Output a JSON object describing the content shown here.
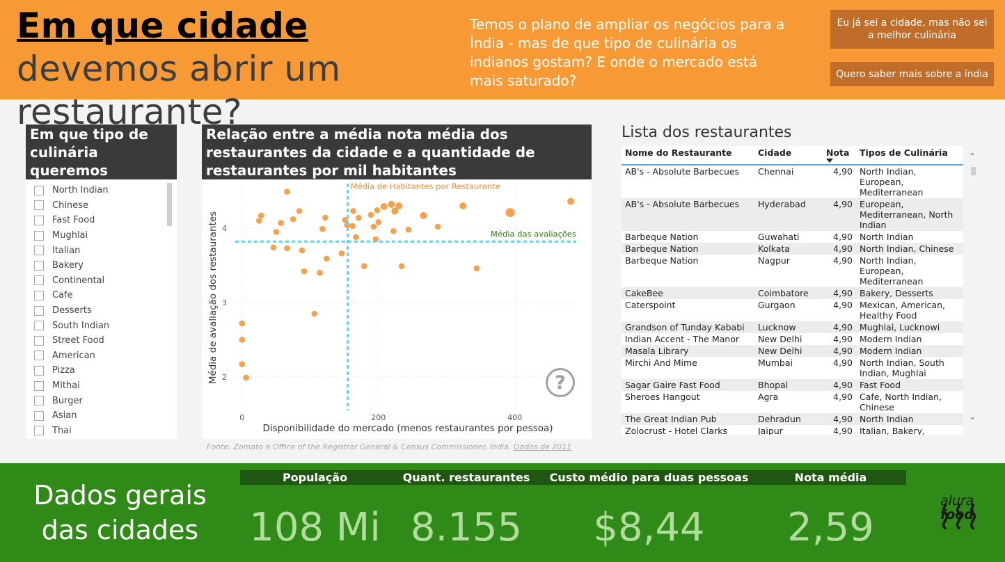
{
  "header": {
    "title_strong": "Em que cidade",
    "title_rest": " devemos abrir um restaurante?",
    "subtitle": "Temos o plano de ampliar os negócios para a Índia - mas de que tipo de culinária os indianos gostam? E onde o mercado está mais saturado?",
    "button_city": "Eu já sei a cidade, mas não sei a melhor culinária",
    "button_india": "Quero saber mais sobre a índia"
  },
  "filter": {
    "title": "Em que tipo de culinária queremos investir?",
    "items": [
      "North Indian",
      "Chinese",
      "Fast Food",
      "Mughlai",
      "Italian",
      "Bakery",
      "Continental",
      "Cafe",
      "Desserts",
      "South Indian",
      "Street Food",
      "American",
      "Pizza",
      "Mithai",
      "Burger",
      "Asian",
      "Thai"
    ]
  },
  "chart": {
    "title": "Relação entre a média nota média dos restaurantes da cidade e a quantidade de restaurantes por mil habitantes",
    "source_text": "Fonte: Zomato e Office of the Registrar General & Census Commissioner, India. ",
    "source_link": "Dados de 2011",
    "help_icon": "?"
  },
  "chart_data": {
    "type": "scatter",
    "xlabel": "Disponibilidade do mercado (menos restaurantes por pessoa)",
    "ylabel": "Média de avaliação dos restaurantes",
    "x_ticks": [
      "0",
      "200",
      "400"
    ],
    "y_ticks": [
      "2",
      "3",
      "4"
    ],
    "xlim": [
      -10,
      490
    ],
    "ylim": [
      1.55,
      4.58
    ],
    "vline": {
      "x": 155,
      "label": "Média de Habitantes por Restaurante"
    },
    "hline": {
      "y": 3.82,
      "label": "Média das avaliações"
    },
    "points": [
      {
        "x": 0,
        "y": 2.72
      },
      {
        "x": 0,
        "y": 2.5
      },
      {
        "x": 0,
        "y": 2.17
      },
      {
        "x": 6,
        "y": 1.99
      },
      {
        "x": 25,
        "y": 4.1
      },
      {
        "x": 28,
        "y": 4.17
      },
      {
        "x": 46,
        "y": 3.74
      },
      {
        "x": 50,
        "y": 3.95
      },
      {
        "x": 57,
        "y": 4.07
      },
      {
        "x": 66,
        "y": 3.73
      },
      {
        "x": 66,
        "y": 4.49
      },
      {
        "x": 75,
        "y": 4.12
      },
      {
        "x": 84,
        "y": 4.23
      },
      {
        "x": 88,
        "y": 3.7
      },
      {
        "x": 91,
        "y": 3.42
      },
      {
        "x": 106,
        "y": 2.85
      },
      {
        "x": 114,
        "y": 3.4
      },
      {
        "x": 118,
        "y": 3.99
      },
      {
        "x": 122,
        "y": 4.14
      },
      {
        "x": 124,
        "y": 3.59
      },
      {
        "x": 146,
        "y": 3.66
      },
      {
        "x": 151,
        "y": 4.11
      },
      {
        "x": 154,
        "y": 4.04
      },
      {
        "x": 162,
        "y": 4.03
      },
      {
        "x": 163,
        "y": 4.23
      },
      {
        "x": 167,
        "y": 3.88
      },
      {
        "x": 171,
        "y": 4.14
      },
      {
        "x": 179,
        "y": 3.49
      },
      {
        "x": 189,
        "y": 4.18
      },
      {
        "x": 193,
        "y": 4.02
      },
      {
        "x": 196,
        "y": 3.85
      },
      {
        "x": 198,
        "y": 4.24
      },
      {
        "x": 200,
        "y": 4.08
      },
      {
        "x": 208,
        "y": 4.29
      },
      {
        "x": 219,
        "y": 4.32
      },
      {
        "x": 222,
        "y": 3.96
      },
      {
        "x": 224,
        "y": 4.23
      },
      {
        "x": 230,
        "y": 4.3
      },
      {
        "x": 234,
        "y": 3.49
      },
      {
        "x": 244,
        "y": 3.98
      },
      {
        "x": 266,
        "y": 4.17
      },
      {
        "x": 287,
        "y": 4.02
      },
      {
        "x": 324,
        "y": 4.3
      },
      {
        "x": 344,
        "y": 3.46
      },
      {
        "x": 393,
        "y": 4.21
      },
      {
        "x": 482,
        "y": 4.36
      }
    ]
  },
  "table": {
    "title": "Lista dos restaurantes",
    "columns": [
      "Nome do Restaurante",
      "Cidade",
      "Nota",
      "Tipos de Culinária"
    ],
    "rows": [
      [
        "AB's - Absolute Barbecues",
        "Chennai",
        "4,90",
        "North Indian, European, Mediterranean"
      ],
      [
        "AB's - Absolute Barbecues",
        "Hyderabad",
        "4,90",
        "European, Mediterranean, North Indian"
      ],
      [
        "Barbeque Nation",
        "Guwahati",
        "4,90",
        "North Indian"
      ],
      [
        "Barbeque Nation",
        "Kolkata",
        "4,90",
        "North Indian, Chinese"
      ],
      [
        "Barbeque Nation",
        "Nagpur",
        "4,90",
        "North Indian, European, Mediterranean"
      ],
      [
        "CakeBee",
        "Coimbatore",
        "4,90",
        "Bakery, Desserts"
      ],
      [
        "Caterspoint",
        "Gurgaon",
        "4,90",
        "Mexican, American, Healthy Food"
      ],
      [
        "Grandson of Tunday Kababi",
        "Lucknow",
        "4,90",
        "Mughlai, Lucknowi"
      ],
      [
        "Indian Accent - The Manor",
        "New Delhi",
        "4,90",
        "Modern Indian"
      ],
      [
        "Masala Library",
        "New Delhi",
        "4,90",
        "Modern Indian"
      ],
      [
        "Mirchi And Mime",
        "Mumbai",
        "4,90",
        "North Indian, South Indian, Mughlai"
      ],
      [
        "Sagar Gaire Fast Food",
        "Bhopal",
        "4,90",
        "Fast Food"
      ],
      [
        "Sheroes Hangout",
        "Agra",
        "4,90",
        "Cafe, North Indian, Chinese"
      ],
      [
        "The Great Indian Pub",
        "Dehradun",
        "4,90",
        "North Indian"
      ],
      [
        "Zolocrust - Hotel Clarks Amer",
        "Jaipur",
        "4,90",
        "Italian, Bakery, Continental"
      ]
    ]
  },
  "footer": {
    "title": "Dados gerais das cidades",
    "kpis": [
      {
        "label": "População",
        "value": "108 Mi"
      },
      {
        "label": "Quant. restaurantes",
        "value": "8.155"
      },
      {
        "label": "Custo médio para duas pessoas",
        "value": "$8,44"
      },
      {
        "label": "Nota média",
        "value": "2,59"
      }
    ],
    "logo_line1": "alura",
    "logo_line2": "food"
  },
  "colors": {
    "header_bg": "#f79a35",
    "footer_bg": "#2f8a18",
    "kpi_value": "#b2dc9d",
    "point": "#f7a24b",
    "vline": "#5bd3ee",
    "vline_label": "#f08a33",
    "hline_label": "#2e7d12"
  }
}
